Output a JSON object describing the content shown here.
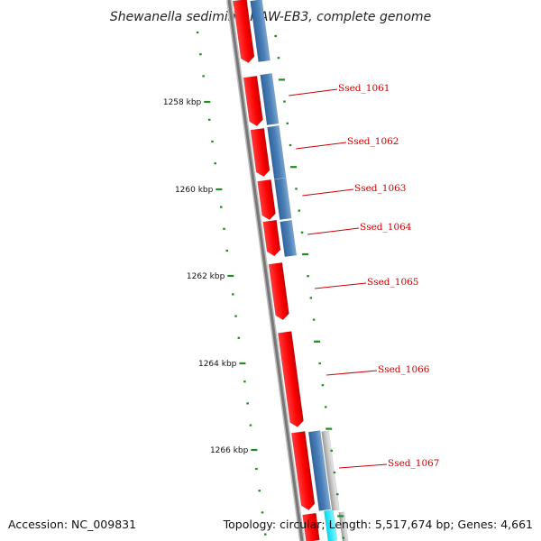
{
  "title": "Shewanella sediminis HAW-EB3, complete genome",
  "footer": {
    "accession": "Accession: NC_009831",
    "summary": "Topology: circular; Length: 5,517,674 bp; Genes: 4,661"
  },
  "colors": {
    "backbone": "#808080",
    "forward_gene": "#ff0000",
    "reverse_gene": "#4a7fb5",
    "other_feature": "#c8c8c8",
    "cyan_feature": "#00e5ff",
    "tick": "#1e8c1e",
    "gene_label": "#cc0000"
  },
  "scale_labels": [
    "1258 kbp",
    "1260 kbp",
    "1262 kbp",
    "1264 kbp",
    "1266 kbp"
  ],
  "gene_labels": [
    "Ssed_1061",
    "Ssed_1062",
    "Ssed_1063",
    "Ssed_1064",
    "Ssed_1065",
    "Ssed_1066",
    "Ssed_1067"
  ]
}
